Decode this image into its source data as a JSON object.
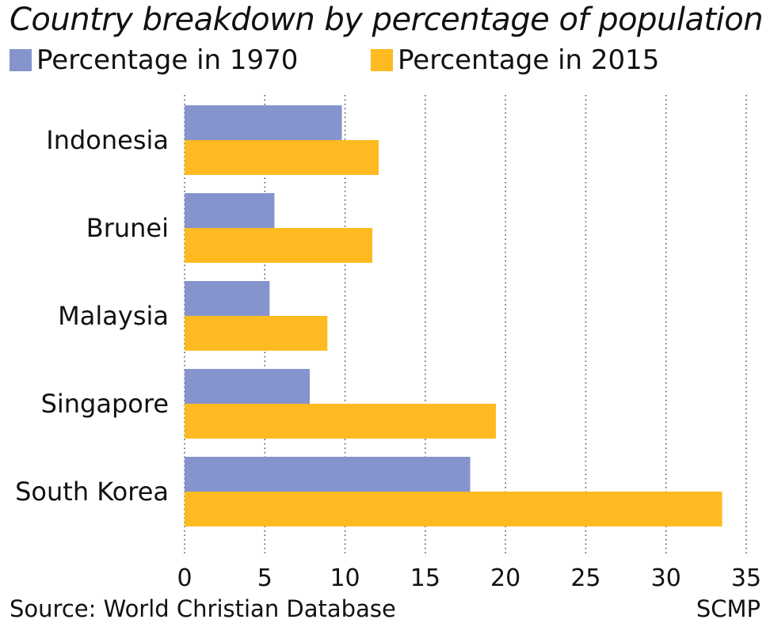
{
  "title": "Country breakdown by percentage of population",
  "source": "Source: World Christian Database",
  "credit": "SCMP",
  "colors": {
    "series_1970": "#8594cd",
    "series_2015": "#fdbb21",
    "grid": "#555555",
    "text": "#111111"
  },
  "chart_data": {
    "type": "bar",
    "orientation": "horizontal",
    "title": "Country breakdown by percentage of population",
    "categories": [
      "Indonesia",
      "Brunei",
      "Malaysia",
      "Singapore",
      "South Korea"
    ],
    "series": [
      {
        "name": "Percentage in 1970",
        "values": [
          9.8,
          5.6,
          5.3,
          7.8,
          17.8
        ]
      },
      {
        "name": "Percentage in 2015",
        "values": [
          12.1,
          11.7,
          8.9,
          19.4,
          33.5
        ]
      }
    ],
    "xlim": [
      0,
      35
    ],
    "xticks": [
      "0",
      "5",
      "10",
      "15",
      "20",
      "25",
      "30",
      "35"
    ],
    "xlabel": "",
    "ylabel": "",
    "grid": "vertical dotted",
    "legend": "top-left"
  }
}
